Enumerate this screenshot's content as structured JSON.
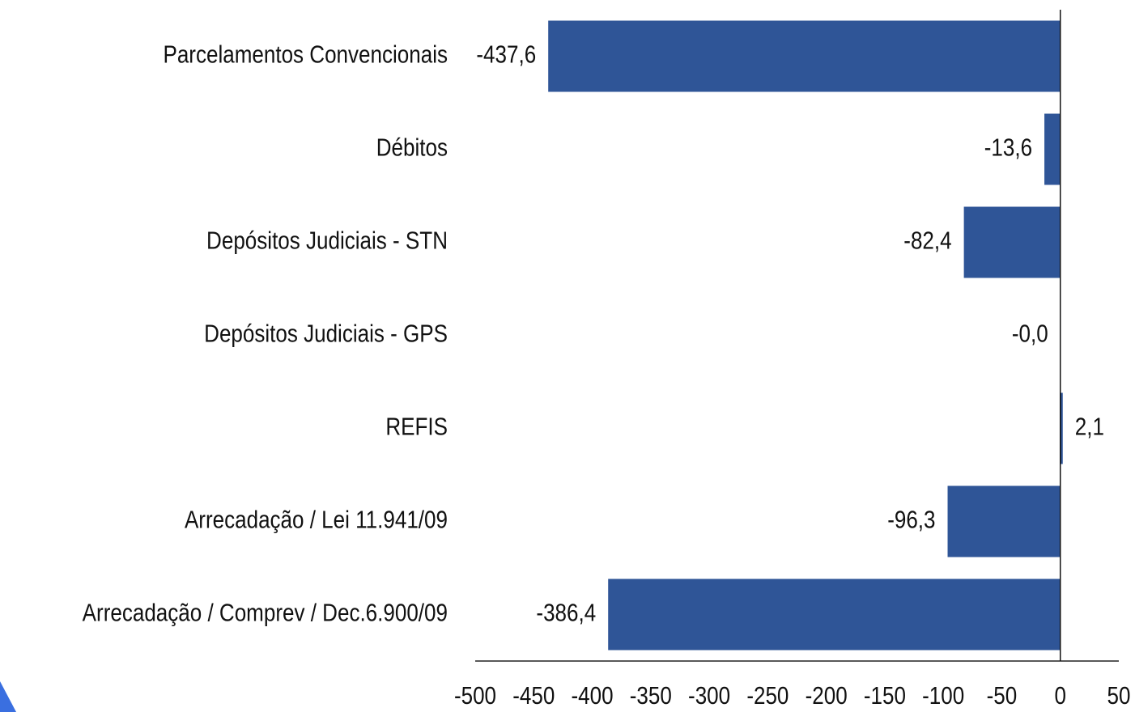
{
  "chart_data": {
    "type": "barh",
    "categories": [
      "Parcelamentos Convencionais",
      "Débitos",
      "Depósitos Judiciais - STN",
      "Depósitos Judiciais - GPS",
      "REFIS",
      "Arrecadação / Lei 11.941/09",
      "Arrecadação / Comprev / Dec.6.900/09"
    ],
    "values": [
      -437.6,
      -13.6,
      -82.4,
      0,
      2.1,
      -96.3,
      -386.4
    ],
    "value_labels": [
      "-437,6",
      "-13,6",
      "-82,4",
      "-0,0",
      "2,1",
      "-96,3",
      "-386,4"
    ],
    "color": "#2f5597",
    "xlim": [
      -500,
      50
    ],
    "xticks": [
      -500,
      -450,
      -400,
      -350,
      -300,
      -250,
      -200,
      -150,
      -100,
      -50,
      0,
      50
    ]
  }
}
